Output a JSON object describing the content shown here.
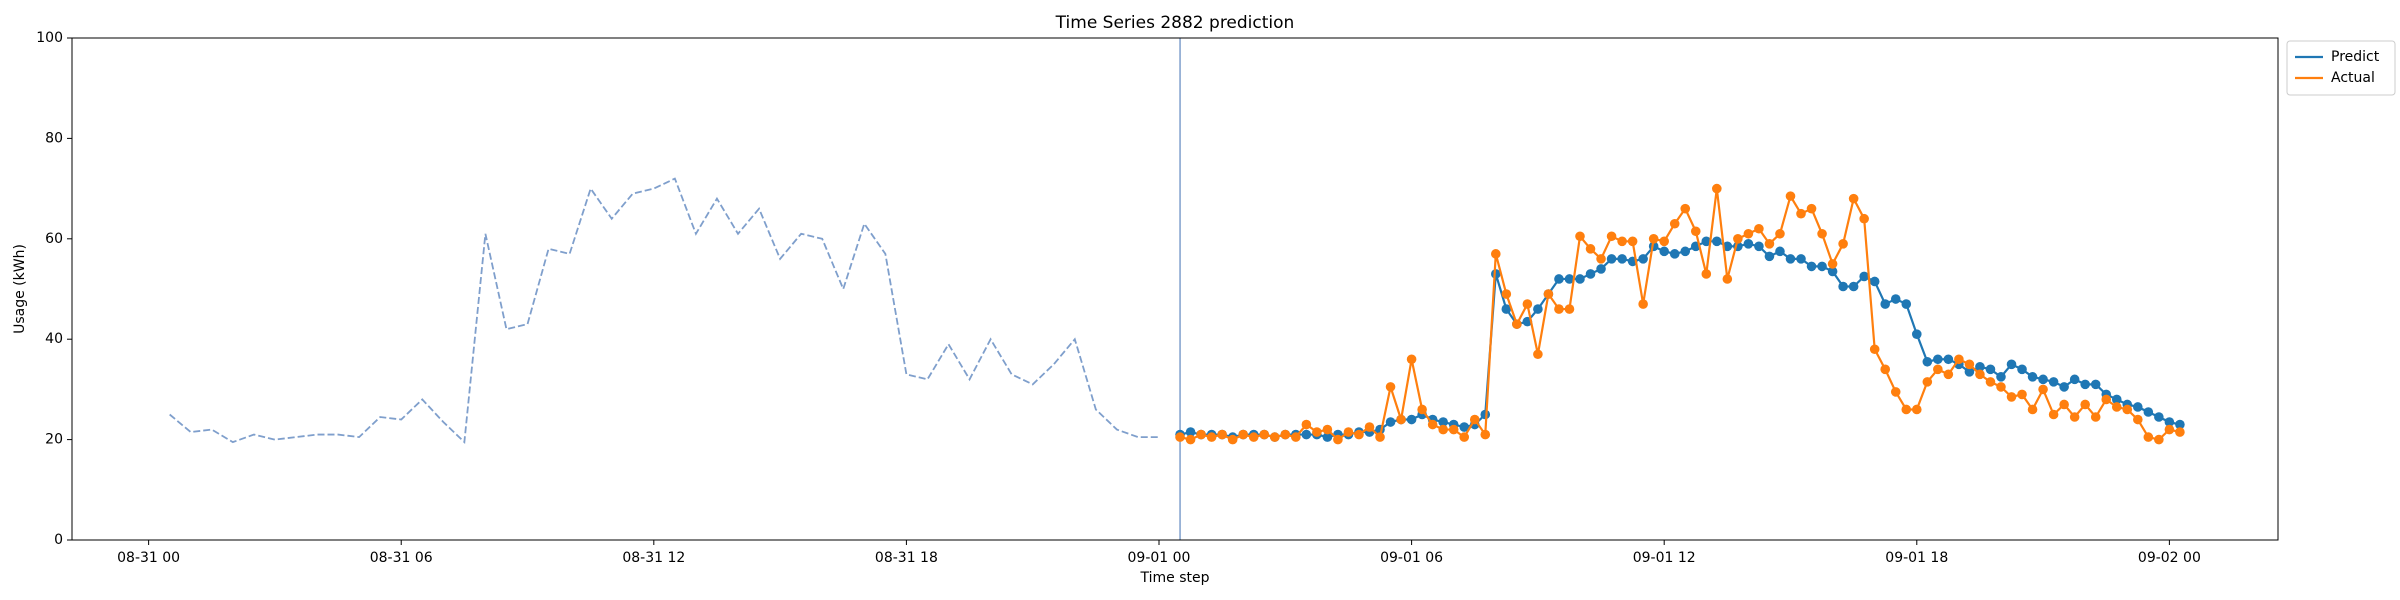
{
  "chart_data": {
    "type": "line",
    "title": "Time Series 2882 prediction",
    "xlabel": "Time step",
    "ylabel": "Usage (kWh)",
    "xlim": [
      -1.82,
      50.58
    ],
    "xticks": [
      {
        "value": 0,
        "label": "08-31 00"
      },
      {
        "value": 6,
        "label": "08-31 06"
      },
      {
        "value": 12,
        "label": "08-31 12"
      },
      {
        "value": 18,
        "label": "08-31 18"
      },
      {
        "value": 24,
        "label": "09-01 00"
      },
      {
        "value": 30,
        "label": "09-01 06"
      },
      {
        "value": 36,
        "label": "09-01 12"
      },
      {
        "value": 42,
        "label": "09-01 18"
      },
      {
        "value": 48,
        "label": "09-02 00"
      }
    ],
    "ylim": [
      0,
      100
    ],
    "yticks": [
      0,
      20,
      40,
      60,
      80,
      100
    ],
    "grid": false,
    "legend": "upper right outside",
    "history": {
      "color": "#7f9fcc",
      "linestyle": "dashed",
      "x": [
        0.5,
        1,
        1.5,
        2,
        2.5,
        3,
        3.5,
        4,
        4.5,
        5,
        5.5,
        6,
        6.5,
        7,
        7.5,
        8,
        8.5,
        9,
        9.5,
        10,
        10.5,
        11,
        11.5,
        12,
        12.5,
        13,
        13.5,
        14,
        14.5,
        15,
        15.5,
        16,
        16.5,
        17,
        17.5,
        18,
        18.5,
        19,
        19.5,
        20,
        20.5,
        21,
        21.5,
        22,
        22.5,
        23,
        23.5,
        24
      ],
      "values": [
        25,
        21.5,
        22,
        19.5,
        21,
        20,
        20.5,
        21,
        21,
        20.5,
        24.5,
        24,
        28,
        23.5,
        19.5,
        61,
        42,
        43,
        58,
        57,
        70,
        64,
        69,
        70,
        72,
        61,
        68,
        61,
        66,
        56,
        61,
        60,
        50,
        63,
        57,
        33,
        32,
        39,
        32,
        40,
        33,
        31,
        35,
        40,
        26,
        22,
        20.5,
        20.5
      ]
    },
    "x": [
      24.5,
      24.75,
      25,
      25.25,
      25.5,
      25.75,
      26,
      26.25,
      26.5,
      26.75,
      27,
      27.25,
      27.5,
      27.75,
      28,
      28.25,
      28.5,
      28.75,
      29,
      29.25,
      29.5,
      29.75,
      30,
      30.25,
      30.5,
      30.75,
      31,
      31.25,
      31.5,
      31.75,
      32,
      32.25,
      32.5,
      32.75,
      33,
      33.25,
      33.5,
      33.75,
      34,
      34.25,
      34.5,
      34.75,
      35,
      35.25,
      35.5,
      35.75,
      36,
      36.25,
      36.5,
      36.75,
      37,
      37.25,
      37.5,
      37.75,
      38,
      38.25,
      38.5,
      38.75,
      39,
      39.25,
      39.5,
      39.75,
      40,
      40.25,
      40.5,
      40.75,
      41,
      41.25,
      41.5,
      41.75,
      42,
      42.25,
      42.5,
      42.75,
      43,
      43.25,
      43.5,
      43.75,
      44,
      44.25,
      44.5,
      44.75,
      45,
      45.25,
      45.5,
      45.75,
      46,
      46.25,
      46.5,
      46.75,
      47,
      47.25,
      47.5,
      47.75,
      48,
      48.25
    ],
    "series": [
      {
        "name": "Predict",
        "color": "#1f77b4",
        "values": [
          21,
          21.5,
          21,
          21,
          21,
          20.5,
          21,
          21,
          21,
          20.5,
          21,
          21,
          21,
          21,
          20.5,
          21,
          21,
          21.5,
          21.5,
          22,
          23.5,
          24,
          24,
          25,
          24,
          23.5,
          23,
          22.5,
          23,
          25,
          53,
          46,
          43,
          43.5,
          46,
          49,
          52,
          52,
          52,
          53,
          54,
          56,
          56,
          55.5,
          56,
          58.5,
          57.5,
          57,
          57.5,
          58.5,
          59.5,
          59.5,
          58.5,
          58.5,
          59,
          58.5,
          56.5,
          57.5,
          56,
          56,
          54.5,
          54.5,
          53.5,
          50.5,
          50.5,
          52.5,
          51.5,
          47,
          48,
          47,
          41,
          35.5,
          36,
          36,
          35,
          33.5,
          34.5,
          34,
          32.5,
          35,
          34,
          32.5,
          32,
          31.5,
          30.5,
          32,
          31,
          31,
          29,
          28,
          27,
          26.5,
          25.5,
          24.5,
          23.5,
          23
        ]
      },
      {
        "name": "Actual",
        "color": "#ff7f0e",
        "values": [
          20.5,
          20,
          21,
          20.5,
          21,
          20,
          21,
          20.5,
          21,
          20.5,
          21,
          20.5,
          23,
          21.5,
          22,
          20,
          21.5,
          21,
          22.5,
          20.5,
          30.5,
          24,
          36,
          26,
          23,
          22,
          22,
          20.5,
          24,
          21,
          57,
          49,
          43,
          47,
          37,
          49,
          46,
          46,
          60.5,
          58,
          56,
          60.5,
          59.5,
          59.5,
          47,
          60,
          59.5,
          63,
          66,
          61.5,
          53,
          70,
          52,
          60,
          61,
          62,
          59,
          61,
          68.5,
          65,
          66,
          61,
          55,
          59,
          68,
          64,
          38,
          34,
          29.5,
          26,
          26,
          31.5,
          34,
          33,
          36,
          35,
          33,
          31.5,
          30.5,
          28.5,
          29,
          26,
          30,
          25,
          27,
          24.5,
          27,
          24.5,
          28,
          26.5,
          26,
          24,
          20.5,
          20,
          22,
          21.5
        ]
      }
    ]
  }
}
